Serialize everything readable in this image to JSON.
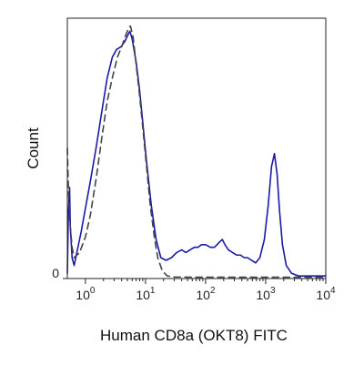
{
  "chart_data": {
    "type": "line",
    "title": "",
    "xlabel": "Human CD8a (OKT8) FITC",
    "ylabel": "Count",
    "x_scale": "log",
    "xlim": [
      0.5,
      10000
    ],
    "ylim": [
      0,
      100
    ],
    "x_ticks": [
      {
        "value": 1,
        "base": "10",
        "exp": "0"
      },
      {
        "value": 10,
        "base": "10",
        "exp": "1"
      },
      {
        "value": 100,
        "base": "10",
        "exp": "2"
      },
      {
        "value": 1000,
        "base": "10",
        "exp": "3"
      },
      {
        "value": 10000,
        "base": "10",
        "exp": "4"
      }
    ],
    "y_ticks": [
      {
        "value": 0,
        "label": "0"
      }
    ],
    "grid": false,
    "legend": "none",
    "series": [
      {
        "style": "solid",
        "color": "#1a1aa6",
        "points": [
          [
            0.5,
            2
          ],
          [
            0.52,
            25
          ],
          [
            0.545,
            35
          ],
          [
            0.56,
            20
          ],
          [
            0.6,
            8
          ],
          [
            0.65,
            5
          ],
          [
            0.72,
            10
          ],
          [
            0.85,
            18
          ],
          [
            1.0,
            27
          ],
          [
            1.2,
            37
          ],
          [
            1.5,
            50
          ],
          [
            1.9,
            65
          ],
          [
            2.3,
            77
          ],
          [
            2.8,
            85
          ],
          [
            3.3,
            88
          ],
          [
            3.9,
            89
          ],
          [
            4.5,
            91
          ],
          [
            5.2,
            94
          ],
          [
            5.5,
            95
          ],
          [
            6.0,
            92
          ],
          [
            7.0,
            83
          ],
          [
            8.0,
            72
          ],
          [
            9.0,
            60
          ],
          [
            10.5,
            44
          ],
          [
            12.5,
            28
          ],
          [
            15,
            15
          ],
          [
            18,
            8
          ],
          [
            22,
            7
          ],
          [
            27,
            8
          ],
          [
            33,
            10
          ],
          [
            40,
            11
          ],
          [
            47,
            10
          ],
          [
            55,
            11
          ],
          [
            65,
            12
          ],
          [
            75,
            12
          ],
          [
            85,
            13
          ],
          [
            100,
            13
          ],
          [
            120,
            12
          ],
          [
            140,
            12
          ],
          [
            155,
            13
          ],
          [
            170,
            14
          ],
          [
            190,
            15
          ],
          [
            210,
            13
          ],
          [
            240,
            11
          ],
          [
            280,
            10
          ],
          [
            330,
            9
          ],
          [
            380,
            9
          ],
          [
            440,
            8
          ],
          [
            500,
            8
          ],
          [
            580,
            7
          ],
          [
            680,
            6
          ],
          [
            800,
            8
          ],
          [
            950,
            15
          ],
          [
            1100,
            28
          ],
          [
            1250,
            43
          ],
          [
            1400,
            48
          ],
          [
            1550,
            40
          ],
          [
            1700,
            26
          ],
          [
            1900,
            13
          ],
          [
            2200,
            5
          ],
          [
            2700,
            2
          ],
          [
            3500,
            1
          ],
          [
            5000,
            1
          ],
          [
            10000,
            1
          ]
        ]
      },
      {
        "style": "dashed",
        "color": "#444444",
        "points": [
          [
            0.5,
            50
          ],
          [
            0.52,
            35
          ],
          [
            0.55,
            22
          ],
          [
            0.6,
            12
          ],
          [
            0.65,
            8
          ],
          [
            0.8,
            10
          ],
          [
            1.0,
            16
          ],
          [
            1.2,
            24
          ],
          [
            1.5,
            38
          ],
          [
            1.9,
            55
          ],
          [
            2.3,
            68
          ],
          [
            2.8,
            77
          ],
          [
            3.4,
            85
          ],
          [
            4.0,
            89
          ],
          [
            4.6,
            93
          ],
          [
            5.2,
            96
          ],
          [
            5.6,
            97
          ],
          [
            6.2,
            93
          ],
          [
            7.0,
            82
          ],
          [
            8.0,
            70
          ],
          [
            9.0,
            58
          ],
          [
            10.5,
            42
          ],
          [
            12,
            28
          ],
          [
            14,
            16
          ],
          [
            16,
            8
          ],
          [
            19,
            3
          ],
          [
            23,
            1
          ],
          [
            30,
            0.6
          ],
          [
            60,
            0.5
          ],
          [
            200,
            0.5
          ],
          [
            1000,
            0.5
          ],
          [
            10000,
            0.5
          ]
        ]
      }
    ]
  }
}
